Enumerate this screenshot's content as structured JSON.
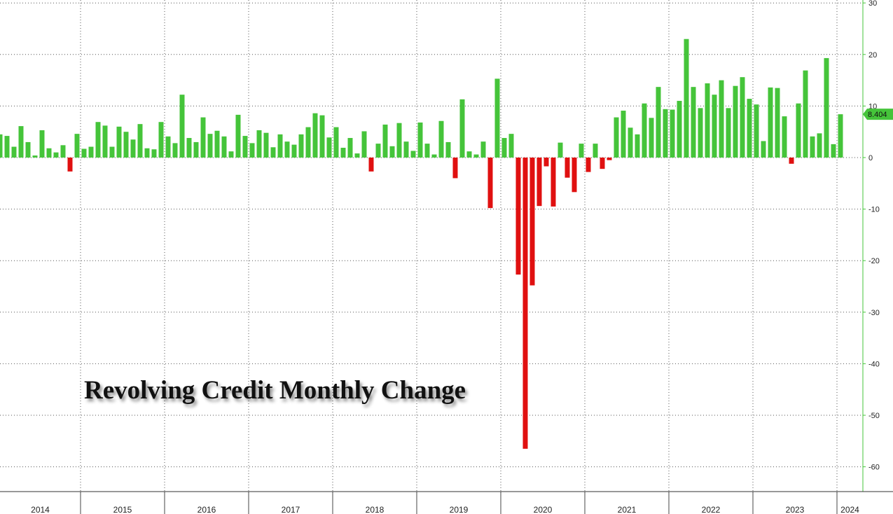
{
  "chart_data": {
    "type": "bar",
    "title": "Revolving Credit Monthly Change",
    "x_axis_labels": [
      "2014",
      "2015",
      "2016",
      "2017",
      "2018",
      "2019",
      "2020",
      "2021",
      "2022",
      "2023",
      "2024"
    ],
    "y_ticks": [
      30,
      20,
      10,
      0,
      -10,
      -20,
      -30,
      -40,
      -50,
      -60
    ],
    "ylim": [
      -65,
      30
    ],
    "grid": true,
    "last_value_label": "8.404",
    "positive_color": "#45c43a",
    "negative_color": "#e01010",
    "start": "2014-01",
    "values": [
      4.5,
      4.2,
      2.1,
      6.1,
      3.0,
      0.4,
      5.3,
      1.8,
      1.0,
      2.4,
      -2.7,
      4.6,
      1.7,
      2.1,
      6.9,
      6.2,
      2.1,
      6.0,
      5.0,
      3.5,
      6.5,
      1.8,
      1.6,
      6.9,
      4.1,
      2.8,
      12.2,
      3.8,
      3.0,
      7.8,
      4.6,
      5.2,
      4.1,
      1.2,
      8.3,
      4.2,
      2.8,
      5.3,
      4.8,
      2.0,
      4.5,
      3.1,
      2.5,
      4.5,
      5.9,
      8.6,
      8.2,
      3.9,
      5.9,
      1.9,
      3.8,
      0.8,
      5.1,
      -2.7,
      2.7,
      6.4,
      2.2,
      6.7,
      3.1,
      1.3,
      6.8,
      2.7,
      0.6,
      7.1,
      3.0,
      -4.0,
      11.3,
      1.2,
      0.6,
      3.1,
      -9.8,
      15.3,
      3.8,
      4.6,
      -22.7,
      -56.5,
      -24.8,
      -9.4,
      -1.7,
      -9.5,
      2.9,
      -3.9,
      -6.7,
      2.7,
      -2.8,
      2.7,
      -2.2,
      -0.5,
      7.8,
      9.1,
      5.8,
      4.5,
      10.5,
      7.7,
      13.7,
      9.4,
      9.3,
      11.0,
      23.0,
      13.7,
      9.6,
      14.4,
      12.2,
      15.0,
      9.6,
      13.9,
      15.6,
      11.4,
      10.3,
      3.2,
      13.6,
      13.5,
      8.0,
      -1.2,
      10.5,
      16.9,
      4.1,
      4.7,
      19.3,
      2.6,
      8.404
    ]
  }
}
